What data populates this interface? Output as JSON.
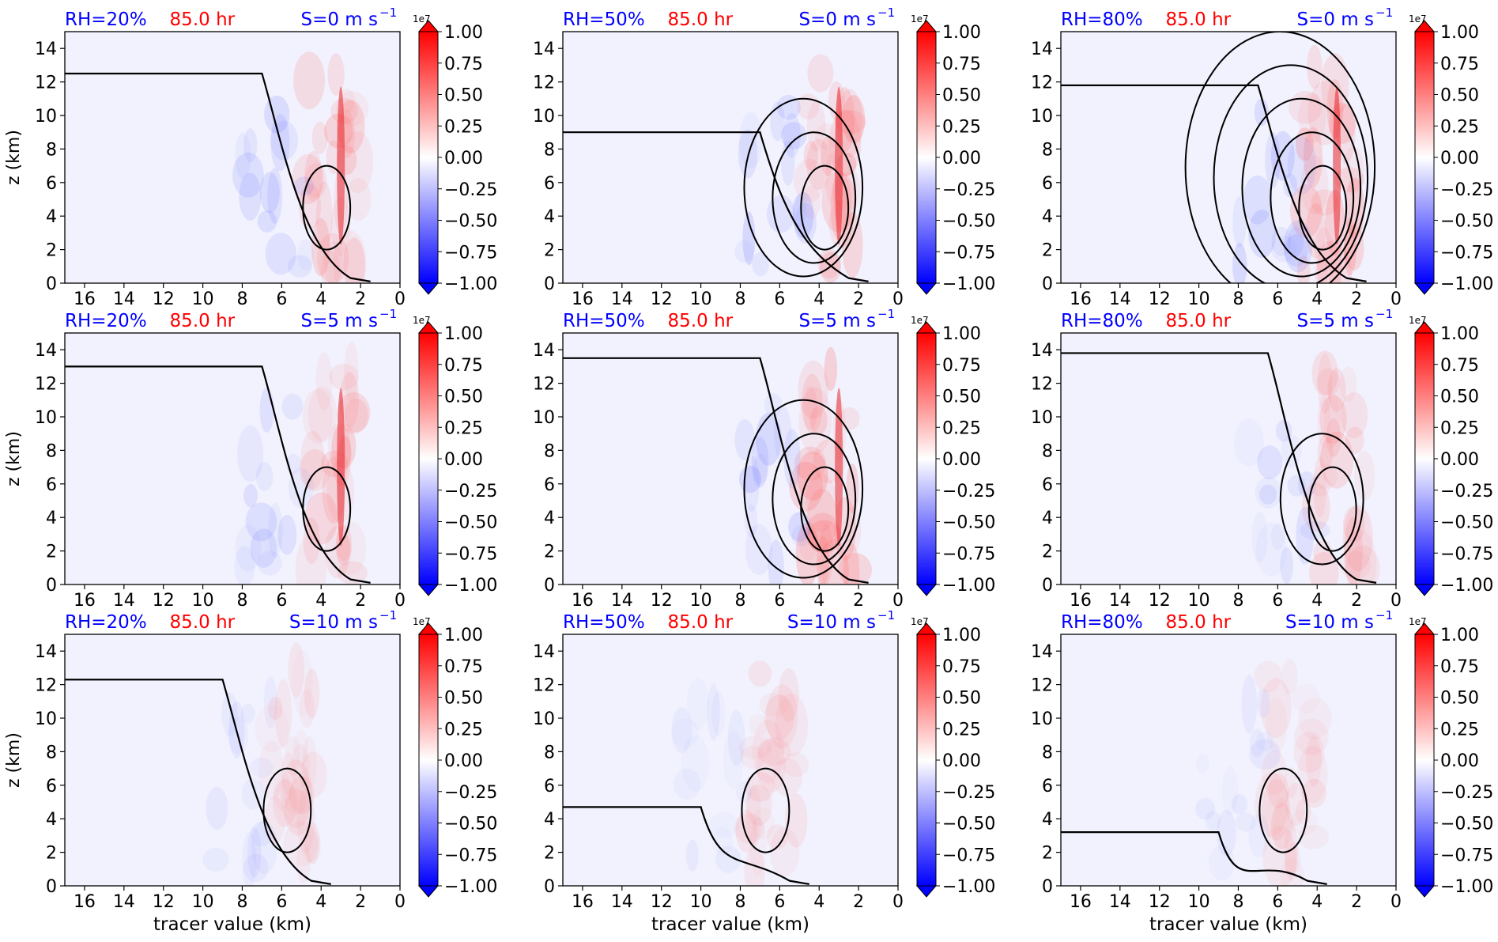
{
  "chart_data": {
    "type": "heatmap",
    "xlabel": "tracer value (km)",
    "ylabel": "z (km)",
    "xlim": [
      17,
      0
    ],
    "ylim": [
      0,
      15
    ],
    "x_ticks": [
      16,
      14,
      12,
      10,
      8,
      6,
      4,
      2,
      0
    ],
    "y_ticks": [
      0,
      2,
      4,
      6,
      8,
      10,
      12,
      14
    ],
    "colorbar": {
      "ticks": [
        "1.00",
        "0.75",
        "0.50",
        "0.25",
        "0.00",
        "−0.25",
        "−0.50",
        "−0.75",
        "−1.00"
      ],
      "multiplier": "1e7",
      "cmap": "bwr",
      "colors": {
        "neg": "#0000ff",
        "zero": "#ffffff",
        "pos": "#ff0000"
      }
    },
    "time_label": "85.0 hr",
    "colors": {
      "rh": "#0000ff",
      "time": "#ff0000",
      "shear": "#0000ff",
      "contour": "#000000"
    },
    "panels": [
      {
        "rh": "RH=20%",
        "shear_pre": "S=0 m s",
        "sup": "−1"
      },
      {
        "rh": "RH=50%",
        "shear_pre": "S=0 m s",
        "sup": "−1"
      },
      {
        "rh": "RH=80%",
        "shear_pre": "S=0 m s",
        "sup": "−1"
      },
      {
        "rh": "RH=20%",
        "shear_pre": "S=5 m s",
        "sup": "−1"
      },
      {
        "rh": "RH=50%",
        "shear_pre": "S=5 m s",
        "sup": "−1"
      },
      {
        "rh": "RH=80%",
        "shear_pre": "S=5 m s",
        "sup": "−1"
      },
      {
        "rh": "RH=20%",
        "shear_pre": "S=10 m s",
        "sup": "−1"
      },
      {
        "rh": "RH=50%",
        "shear_pre": "S=10 m s",
        "sup": "−1"
      },
      {
        "rh": "RH=80%",
        "shear_pre": "S=10 m s",
        "sup": "−1"
      }
    ]
  }
}
